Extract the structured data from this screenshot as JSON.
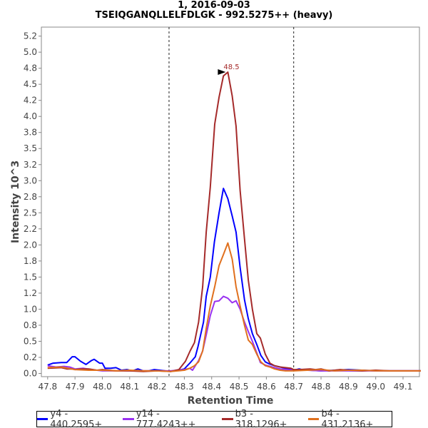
{
  "chart_data": {
    "type": "line",
    "title": "1, 2016-09-03",
    "subtitle": "TSEIQGANQLLELFDLGK - 992.5275++ (heavy)",
    "xlabel": "Retention Time",
    "ylabel": "Intensity 10^3",
    "xlim": [
      47.777,
      49.16
    ],
    "ylim": [
      -0.05,
      5.39
    ],
    "x_ticks": [
      47.8,
      47.9,
      48.0,
      48.1,
      48.2,
      48.3,
      48.4,
      48.5,
      48.6,
      48.7,
      48.8,
      48.9,
      49.0,
      49.1
    ],
    "x_tick_labels": [
      "47.8",
      "47.9",
      "48.0",
      "48.1",
      "48.2",
      "48.3",
      "48.4",
      "48.5",
      "48.6",
      "48.7",
      "48.8",
      "48.9",
      "49.0",
      "49.1"
    ],
    "y_ticks": [
      0,
      0.25,
      0.5,
      0.75,
      1,
      1.25,
      1.5,
      1.75,
      2,
      2.25,
      2.5,
      2.75,
      3,
      3.25,
      3.5,
      3.75,
      4,
      4.25,
      4.5,
      4.75,
      5,
      5.25
    ],
    "y_tick_labels": [
      "0.0",
      "0.2",
      "0.5",
      "0.8",
      "1.0",
      "1.2",
      "1.5",
      "1.8",
      "2.0",
      "2.2",
      "2.5",
      "2.8",
      "3.0",
      "3.2",
      "3.5",
      "3.8",
      "4.0",
      "4.2",
      "4.5",
      "4.8",
      "5.0",
      "5.2"
    ],
    "boundary_lines": [
      48.244,
      48.7
    ],
    "peak_annotation": {
      "label": "48.5",
      "x": 48.459,
      "y": 4.69,
      "color": "#a52a2a"
    },
    "legend_position": "bottom",
    "series": [
      {
        "name": "y4 - 440.2595+",
        "color": "#0000ff",
        "x": [
          47.8,
          47.82,
          47.85,
          47.87,
          47.89,
          47.9,
          47.92,
          47.94,
          47.96,
          47.97,
          47.99,
          48.0,
          48.01,
          48.03,
          48.05,
          48.07,
          48.09,
          48.11,
          48.13,
          48.15,
          48.17,
          48.19,
          48.21,
          48.23,
          48.25,
          48.27,
          48.29,
          48.3,
          48.32,
          48.34,
          48.35,
          48.37,
          48.38,
          48.395,
          48.41,
          48.427,
          48.443,
          48.459,
          48.475,
          48.489,
          48.504,
          48.52,
          48.534,
          48.549,
          48.565,
          48.58,
          48.596,
          48.61,
          48.63,
          48.65,
          48.67,
          48.69,
          48.7,
          48.72,
          48.74,
          48.76,
          48.8,
          48.85,
          48.9,
          48.95,
          49.0,
          49.05,
          49.1,
          49.165
        ],
        "y": [
          0.13,
          0.16,
          0.17,
          0.17,
          0.26,
          0.26,
          0.19,
          0.14,
          0.2,
          0.22,
          0.16,
          0.16,
          0.08,
          0.08,
          0.09,
          0.05,
          0.06,
          0.04,
          0.07,
          0.04,
          0.04,
          0.06,
          0.05,
          0.04,
          0.03,
          0.05,
          0.06,
          0.07,
          0.16,
          0.26,
          0.42,
          0.8,
          1.2,
          1.5,
          2.05,
          2.5,
          2.88,
          2.72,
          2.45,
          2.2,
          1.65,
          1.15,
          0.85,
          0.62,
          0.45,
          0.28,
          0.18,
          0.15,
          0.12,
          0.1,
          0.08,
          0.07,
          0.05,
          0.07,
          0.05,
          0.05,
          0.04,
          0.05,
          0.06,
          0.05,
          0.04,
          0.04,
          0.04,
          0.04
        ]
      },
      {
        "name": "y14 - 777.4243++",
        "color": "#9932f0",
        "x": [
          47.8,
          47.83,
          47.86,
          47.88,
          47.9,
          47.93,
          47.96,
          48.0,
          48.05,
          48.1,
          48.15,
          48.2,
          48.25,
          48.3,
          48.32,
          48.33,
          48.352,
          48.367,
          48.38,
          48.395,
          48.411,
          48.427,
          48.443,
          48.459,
          48.475,
          48.489,
          48.504,
          48.52,
          48.534,
          48.549,
          48.565,
          48.578,
          48.596,
          48.613,
          48.63,
          48.65,
          48.7,
          48.75,
          48.8,
          48.9,
          49.0,
          49.165
        ],
        "y": [
          0.12,
          0.1,
          0.11,
          0.1,
          0.07,
          0.08,
          0.06,
          0.04,
          0.04,
          0.04,
          0.04,
          0.04,
          0.04,
          0.06,
          0.08,
          0.05,
          0.2,
          0.35,
          0.6,
          0.9,
          1.12,
          1.13,
          1.2,
          1.17,
          1.1,
          1.13,
          1.0,
          0.8,
          0.65,
          0.5,
          0.32,
          0.17,
          0.13,
          0.11,
          0.09,
          0.07,
          0.05,
          0.05,
          0.04,
          0.04,
          0.04,
          0.04
        ]
      },
      {
        "name": "b3 - 318.1296+",
        "color": "#a52a2a",
        "x": [
          47.8,
          47.85,
          47.87,
          47.89,
          47.9,
          47.92,
          47.95,
          47.98,
          48.0,
          48.05,
          48.1,
          48.15,
          48.2,
          48.25,
          48.28,
          48.304,
          48.321,
          48.337,
          48.352,
          48.367,
          48.38,
          48.395,
          48.411,
          48.427,
          48.443,
          48.459,
          48.475,
          48.489,
          48.504,
          48.52,
          48.534,
          48.549,
          48.565,
          48.578,
          48.596,
          48.613,
          48.63,
          48.65,
          48.67,
          48.69,
          48.7,
          48.72,
          48.76,
          48.78,
          48.8,
          48.83,
          48.87,
          48.9,
          48.95,
          49.0,
          49.05,
          49.165
        ],
        "y": [
          0.08,
          0.09,
          0.07,
          0.07,
          0.06,
          0.07,
          0.07,
          0.05,
          0.06,
          0.04,
          0.04,
          0.03,
          0.04,
          0.03,
          0.06,
          0.19,
          0.35,
          0.48,
          0.8,
          1.35,
          2.2,
          2.9,
          3.88,
          4.3,
          4.63,
          4.69,
          4.32,
          3.85,
          2.85,
          2.1,
          1.45,
          1.0,
          0.62,
          0.55,
          0.3,
          0.16,
          0.12,
          0.1,
          0.09,
          0.08,
          0.06,
          0.06,
          0.07,
          0.06,
          0.07,
          0.04,
          0.06,
          0.05,
          0.04,
          0.05,
          0.04,
          0.04
        ]
      },
      {
        "name": "b4 - 431.2136+",
        "color": "#e0701e",
        "x": [
          47.8,
          47.85,
          47.9,
          47.95,
          48.0,
          48.05,
          48.1,
          48.15,
          48.2,
          48.25,
          48.3,
          48.32,
          48.337,
          48.352,
          48.367,
          48.38,
          48.395,
          48.411,
          48.427,
          48.443,
          48.459,
          48.475,
          48.489,
          48.504,
          48.52,
          48.534,
          48.549,
          48.565,
          48.58,
          48.596,
          48.613,
          48.63,
          48.65,
          48.67,
          48.7,
          48.75,
          48.8,
          48.85,
          48.9,
          48.95,
          49.0,
          49.165
        ],
        "y": [
          0.09,
          0.1,
          0.06,
          0.05,
          0.05,
          0.04,
          0.05,
          0.04,
          0.04,
          0.03,
          0.05,
          0.08,
          0.12,
          0.18,
          0.35,
          0.7,
          1.05,
          1.35,
          1.68,
          1.85,
          2.03,
          1.78,
          1.35,
          1.05,
          0.75,
          0.52,
          0.45,
          0.3,
          0.18,
          0.12,
          0.1,
          0.07,
          0.05,
          0.04,
          0.04,
          0.05,
          0.06,
          0.04,
          0.05,
          0.05,
          0.04,
          0.04
        ]
      }
    ]
  }
}
